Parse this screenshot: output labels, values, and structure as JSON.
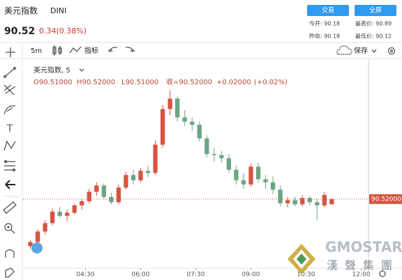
{
  "header": {
    "name": "美元指数",
    "symbol": "DINI",
    "price": "90.52",
    "change": "0.34(0.38%)",
    "buttons": [
      "交易",
      "全屏"
    ],
    "stats": [
      "今开: 90.18",
      "最高价: 90.89",
      "昨收: 90.18",
      "最低价: 90.12"
    ]
  },
  "toolbar": {
    "interval": "5m",
    "indicators": "指标",
    "save": "保存"
  },
  "legend": {
    "title": "美元指数, 5",
    "open": "O90.51000",
    "high": "H90.52000",
    "low": "L90.51000",
    "close": "收=90.52000",
    "change": "+0.02000",
    "change_pct": "(+0.02%)"
  },
  "watermark": "漢聲集團",
  "chart_data": {
    "type": "candlestick",
    "up_color": "#d75442",
    "down_color": "#6ba583",
    "x": [
      3.0,
      3.2,
      3.4,
      3.6,
      3.8,
      4.0,
      4.2,
      4.4,
      4.6,
      4.8,
      5.0,
      5.2,
      5.4,
      5.6,
      5.8,
      6.0,
      6.2,
      6.4,
      6.6,
      6.8,
      7.0,
      7.2,
      7.4,
      7.6,
      7.8,
      8.0,
      8.2,
      8.4,
      8.6,
      8.8,
      9.0,
      9.2,
      9.4,
      9.6,
      9.8,
      10.0,
      10.2,
      10.4,
      10.6,
      10.8,
      11.0,
      11.2
    ],
    "open": [
      90.43,
      90.438,
      90.458,
      90.474,
      90.496,
      90.488,
      90.494,
      90.508,
      90.516,
      90.534,
      90.546,
      90.524,
      90.514,
      90.542,
      90.566,
      90.556,
      90.574,
      90.57,
      90.624,
      90.692,
      90.712,
      90.676,
      90.668,
      90.662,
      90.636,
      90.606,
      90.604,
      90.598,
      90.576,
      90.556,
      90.548,
      90.582,
      90.558,
      90.552,
      90.538,
      90.512,
      90.518,
      90.51,
      90.522,
      90.514,
      90.508,
      90.51
    ],
    "high": [
      90.442,
      90.462,
      90.48,
      90.502,
      90.505,
      90.5,
      90.512,
      90.52,
      90.54,
      90.552,
      90.55,
      90.532,
      90.548,
      90.572,
      90.576,
      90.58,
      90.584,
      90.632,
      90.7,
      90.728,
      90.716,
      90.69,
      90.676,
      90.668,
      90.642,
      90.618,
      90.612,
      90.606,
      90.584,
      90.57,
      90.588,
      90.59,
      90.566,
      90.564,
      90.546,
      90.524,
      90.524,
      90.528,
      90.526,
      90.52,
      90.534,
      90.52
    ],
    "low": [
      90.425,
      90.434,
      90.452,
      90.47,
      90.484,
      90.478,
      90.49,
      90.5,
      90.512,
      90.526,
      90.52,
      90.51,
      90.51,
      90.538,
      90.548,
      90.552,
      90.562,
      90.566,
      90.618,
      90.68,
      90.668,
      90.66,
      90.65,
      90.63,
      90.6,
      90.592,
      90.59,
      90.57,
      90.548,
      90.54,
      90.544,
      90.552,
      90.54,
      90.53,
      90.506,
      90.504,
      90.506,
      90.506,
      90.508,
      90.48,
      90.504,
      90.51
    ],
    "close": [
      90.438,
      90.458,
      90.474,
      90.496,
      90.488,
      90.494,
      90.508,
      90.516,
      90.534,
      90.546,
      90.524,
      90.514,
      90.542,
      90.566,
      90.556,
      90.574,
      90.57,
      90.624,
      90.692,
      90.712,
      90.676,
      90.668,
      90.662,
      90.636,
      90.606,
      90.604,
      90.598,
      90.576,
      90.556,
      90.548,
      90.582,
      90.558,
      90.552,
      90.538,
      90.512,
      90.518,
      90.51,
      90.522,
      90.514,
      90.508,
      90.528,
      90.52
    ],
    "xlim": [
      2.8,
      12.2
    ],
    "ylim": [
      90.392,
      90.778
    ],
    "xticks": [
      {
        "value": 4.5,
        "label": "04:30"
      },
      {
        "value": 6,
        "label": "06:00"
      },
      {
        "value": 7.5,
        "label": "07:30"
      },
      {
        "value": 9,
        "label": "09:00"
      },
      {
        "value": 10.5,
        "label": "10:30"
      },
      {
        "value": 12,
        "label": "12:00"
      }
    ],
    "last_price": {
      "value": 90.52,
      "label": "90.52000"
    }
  }
}
